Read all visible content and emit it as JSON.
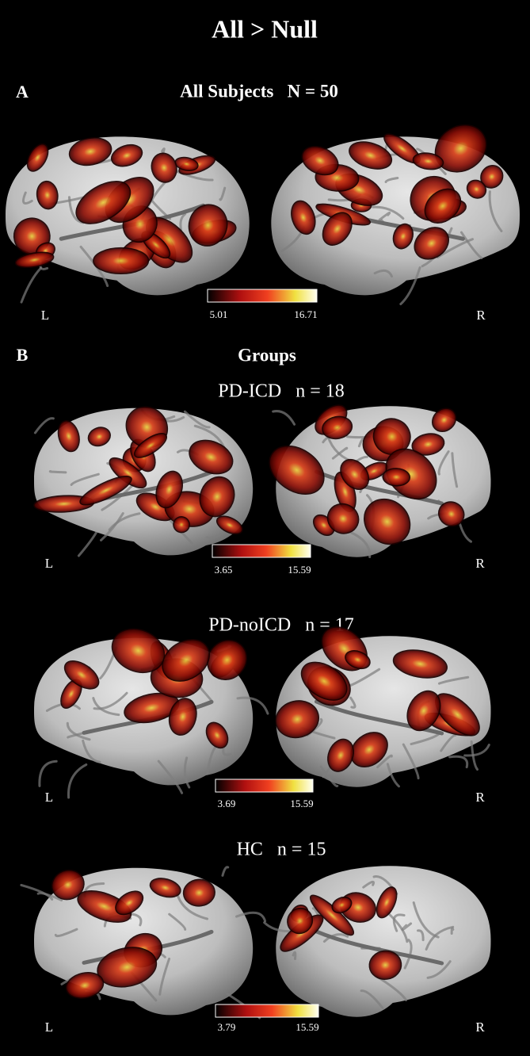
{
  "title": "All > Null",
  "panel_a": {
    "letter": "A",
    "heading": "All Subjects   N = 50",
    "left": "L",
    "right": "R",
    "colorbar": {
      "min": "5.01",
      "max": "16.71"
    }
  },
  "panel_b": {
    "letter": "B",
    "heading": "Groups",
    "groups": [
      {
        "label": "PD-ICD   n = 18",
        "left": "L",
        "right": "R",
        "colorbar": {
          "min": "3.65",
          "max": "15.59"
        }
      },
      {
        "label": "PD-noICD   n = 17",
        "left": "L",
        "right": "R",
        "colorbar": {
          "min": "3.69",
          "max": "15.59"
        }
      },
      {
        "label": "HC   n = 15",
        "left": "L",
        "right": "R",
        "colorbar": {
          "min": "3.79",
          "max": "15.59"
        }
      }
    ]
  }
}
